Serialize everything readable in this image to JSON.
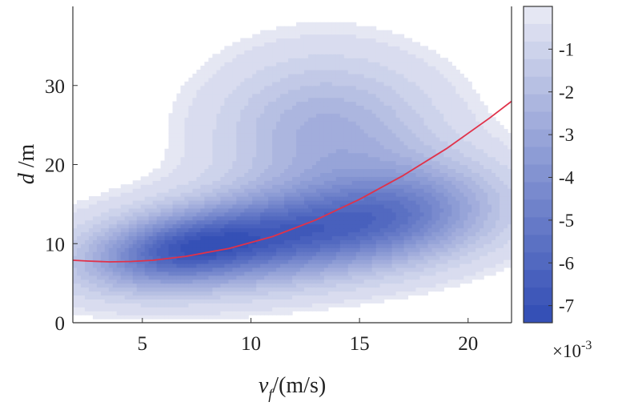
{
  "chart_data": {
    "type": "heatmap",
    "title": "",
    "xlabel": {
      "main": "v",
      "sub": "f",
      "unit": "/(m/s)"
    },
    "ylabel": {
      "main": "d",
      "unit": " /m"
    },
    "xlim": [
      1.8,
      22
    ],
    "ylim": [
      0,
      40
    ],
    "xticks": [
      5,
      10,
      15,
      20
    ],
    "yticks": [
      0,
      10,
      20,
      30
    ],
    "grid": false,
    "contour_levels": 18,
    "colormap": [
      "#f3f3f8",
      "#3550b6"
    ],
    "colorbar": {
      "ticks": [
        -1,
        -2,
        -3,
        -4,
        -5,
        -6,
        -7
      ],
      "range": [
        -7.4,
        0
      ],
      "multiplier": {
        "base": "×10",
        "exponent": "-3"
      }
    },
    "density_components": [
      {
        "x0": 11.5,
        "y0": 11.0,
        "sx": 5.2,
        "sy": 4.2,
        "rho": 0.35,
        "w": 1.0
      },
      {
        "x0": 6.5,
        "y0": 9.0,
        "sx": 2.6,
        "sy": 3.0,
        "rho": 0.3,
        "w": 0.55
      },
      {
        "x0": 13.5,
        "y0": 24.0,
        "sx": 3.4,
        "sy": 6.5,
        "rho": 0.0,
        "w": 0.45
      },
      {
        "x0": 17.5,
        "y0": 15.0,
        "sx": 2.8,
        "sy": 4.5,
        "rho": 0.1,
        "w": 0.35
      }
    ],
    "series": [
      {
        "type": "line",
        "color": "#e0324a",
        "x": [
          1.8,
          2.5,
          3.5,
          4.5,
          5.5,
          7,
          9,
          11,
          13,
          15,
          17,
          19,
          21,
          22
        ],
        "y": [
          7.9,
          7.8,
          7.7,
          7.75,
          7.9,
          8.4,
          9.4,
          10.9,
          13.0,
          15.6,
          18.6,
          22.0,
          25.9,
          28.0
        ]
      }
    ]
  }
}
